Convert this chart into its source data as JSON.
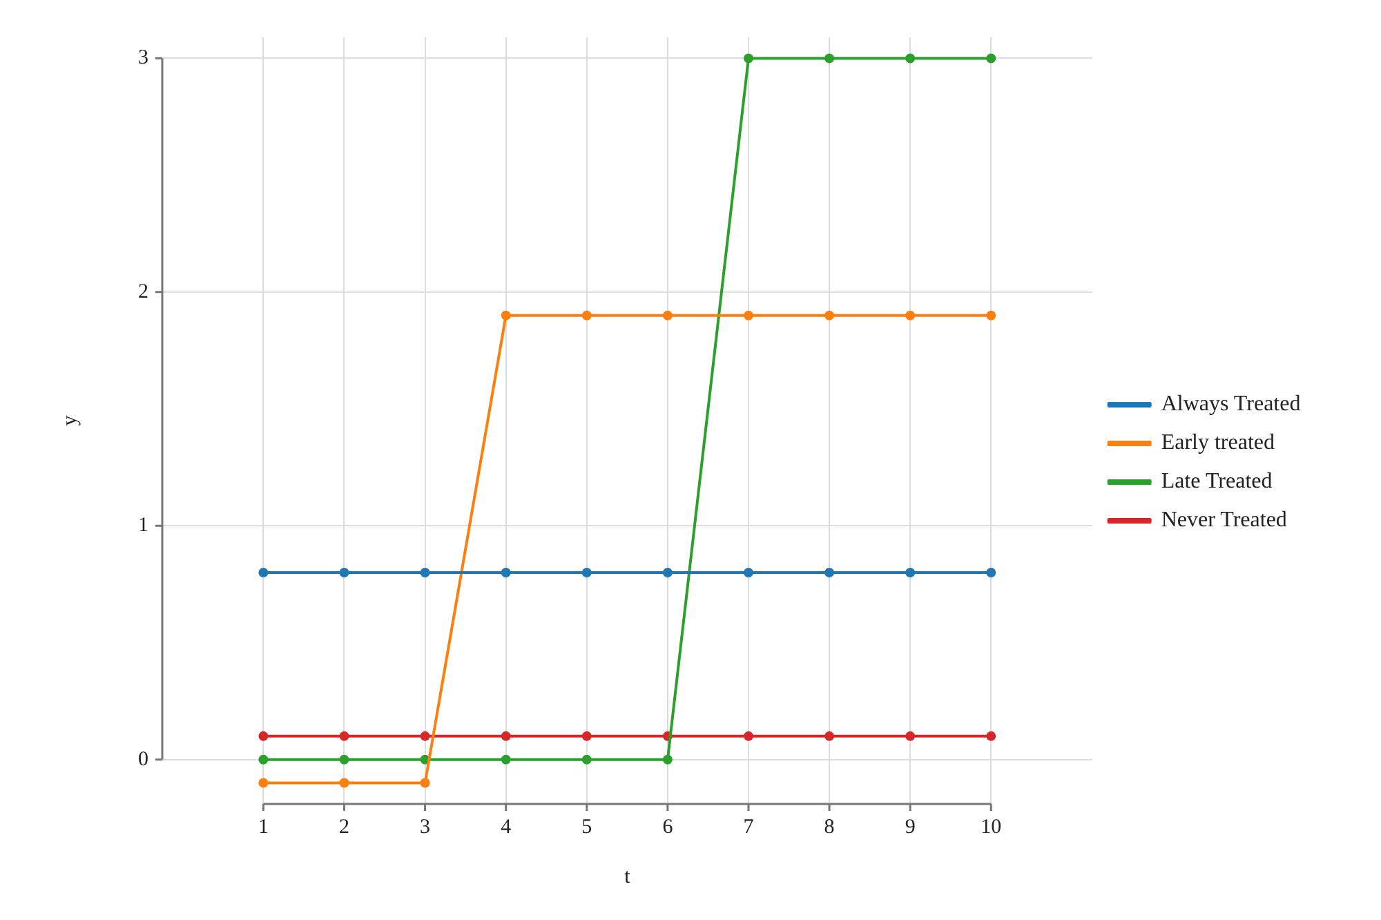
{
  "chart_data": {
    "type": "line",
    "xlabel": "t",
    "ylabel": "y",
    "x": [
      1,
      2,
      3,
      4,
      5,
      6,
      7,
      8,
      9,
      10
    ],
    "series": [
      {
        "name": "Always Treated",
        "color": "#1f77b4",
        "values": [
          0.8,
          0.8,
          0.8,
          0.8,
          0.8,
          0.8,
          0.8,
          0.8,
          0.8,
          0.8
        ]
      },
      {
        "name": "Early treated",
        "color": "#ff7f0e",
        "values": [
          -0.1,
          -0.1,
          -0.1,
          1.9,
          1.9,
          1.9,
          1.9,
          1.9,
          1.9,
          1.9
        ]
      },
      {
        "name": "Late Treated",
        "color": "#2ca02c",
        "values": [
          0,
          0,
          0,
          0,
          0,
          0,
          3,
          3,
          3,
          3
        ]
      },
      {
        "name": "Never Treated",
        "color": "#d62728",
        "values": [
          0.1,
          0.1,
          0.1,
          0.1,
          0.1,
          0.1,
          0.1,
          0.1,
          0.1,
          0.1
        ]
      }
    ],
    "xlim": [
      -0.25,
      11.25
    ],
    "ylim": [
      -0.19,
      3.09
    ],
    "xticks": [
      1,
      2,
      3,
      4,
      5,
      6,
      7,
      8,
      9,
      10
    ],
    "yticks": [
      0,
      1,
      2,
      3
    ],
    "grid": true,
    "legend": "right",
    "marker": "circle",
    "line_style": "solid"
  }
}
